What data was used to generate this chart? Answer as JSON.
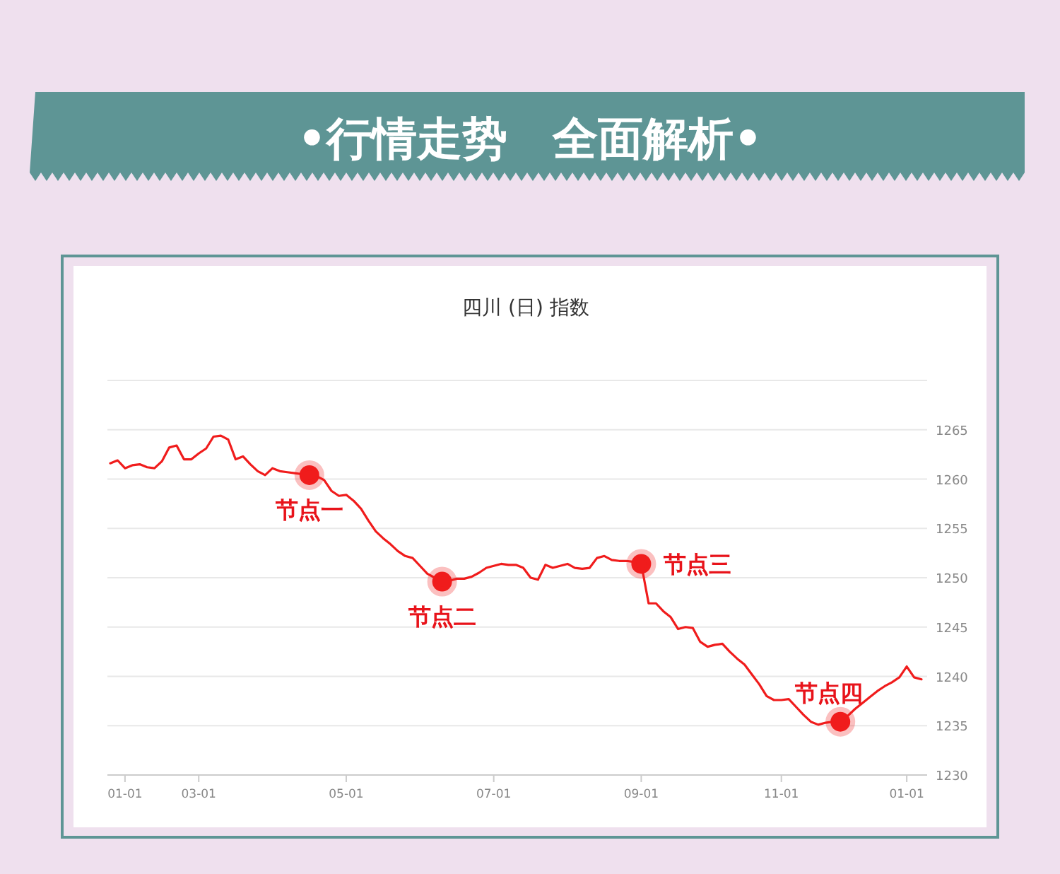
{
  "chart_data": {
    "type": "line",
    "title": "•行情走势　全面解析•",
    "subtitle": "四川 (日) 指数",
    "categories": [
      null,
      null,
      "01-01",
      null,
      null,
      null,
      null,
      null,
      null,
      null,
      null,
      null,
      "03-01",
      null,
      null,
      null,
      null,
      null,
      null,
      null,
      null,
      null,
      null,
      null,
      null,
      null,
      null,
      null,
      null,
      null,
      null,
      null,
      "05-01",
      null,
      null,
      null,
      null,
      null,
      null,
      null,
      null,
      null,
      null,
      null,
      null,
      null,
      null,
      null,
      null,
      null,
      null,
      null,
      "07-01",
      null,
      null,
      null,
      null,
      null,
      null,
      null,
      null,
      null,
      null,
      null,
      null,
      null,
      null,
      null,
      null,
      null,
      null,
      null,
      "09-01",
      null,
      null,
      null,
      null,
      null,
      null,
      null,
      null,
      null,
      null,
      null,
      null,
      null,
      null,
      null,
      null,
      null,
      null,
      "11-01",
      null,
      null,
      null,
      null,
      null,
      null,
      null,
      null,
      null,
      null,
      null,
      null,
      null,
      null,
      null,
      null,
      "01-01",
      null,
      null
    ],
    "ylim": [
      1230,
      1270
    ],
    "yticks": [
      1230,
      1235,
      1240,
      1245,
      1250,
      1255,
      1260,
      1265,
      {
        "value": 1270,
        "label": null
      }
    ],
    "grid": "y",
    "series": [
      {
        "color": "#f01c1c",
        "values": [
          1261.6,
          1261.9,
          1261.1,
          1261.4,
          1261.5,
          1261.2,
          1261.1,
          1261.8,
          1263.2,
          1263.4,
          1262.0,
          1262.0,
          1262.6,
          1263.1,
          1264.3,
          1264.4,
          1264.0,
          1262.0,
          1262.3,
          1261.5,
          1260.8,
          1260.4,
          1261.1,
          1260.8,
          1260.7,
          1260.6,
          1260.5,
          1260.4,
          1260.3,
          1259.9,
          1258.8,
          1258.3,
          1258.4,
          1257.8,
          1257.0,
          1255.8,
          1254.7,
          1254.0,
          1253.4,
          1252.7,
          1252.2,
          1252.0,
          1251.2,
          1250.4,
          1250.0,
          1249.6,
          1249.7,
          1249.9,
          1249.9,
          1250.1,
          1250.5,
          1251.0,
          1251.2,
          1251.4,
          1251.3,
          1251.3,
          1251.0,
          1250.0,
          1249.8,
          1251.3,
          1251.0,
          1251.2,
          1251.4,
          1251.0,
          1250.9,
          1251.0,
          1252.0,
          1252.2,
          1251.8,
          1251.7,
          1251.7,
          1251.6,
          1251.4,
          1247.4,
          1247.4,
          1246.6,
          1246.0,
          1244.8,
          1245.0,
          1244.9,
          1243.5,
          1243.0,
          1243.2,
          1243.3,
          1242.5,
          1241.8,
          1241.2,
          1240.2,
          1239.2,
          1238.0,
          1237.6,
          1237.6,
          1237.7,
          1236.9,
          1236.1,
          1235.4,
          1235.1,
          1235.3,
          1235.4,
          1235.4,
          1236.0,
          1236.7,
          1237.3,
          1237.9,
          1238.5,
          1239.0,
          1239.4,
          1239.9,
          1241.0,
          1239.9,
          1239.7
        ]
      },
      {
        "type": "scatter",
        "marker": "circle",
        "color": "#f01c1c",
        "values": [
          null,
          null,
          null,
          null,
          null,
          null,
          null,
          null,
          null,
          null,
          null,
          null,
          null,
          null,
          null,
          null,
          null,
          null,
          null,
          null,
          null,
          null,
          null,
          null,
          null,
          null,
          null,
          1260.4,
          null,
          null,
          null,
          null,
          null,
          null,
          null,
          null,
          null,
          null,
          null,
          null,
          null,
          null,
          null,
          null,
          null,
          1249.6,
          null,
          null,
          null,
          null,
          null,
          null,
          null,
          null,
          null,
          null,
          null,
          null,
          null,
          null,
          null,
          null,
          null,
          null,
          null,
          null,
          null,
          null,
          null,
          null,
          null,
          null,
          1251.4,
          null,
          null,
          null,
          null,
          null,
          null,
          null,
          null,
          null,
          null,
          null,
          null,
          null,
          null,
          null,
          null,
          null,
          null,
          null,
          null,
          null,
          null,
          null,
          null,
          null,
          null,
          1235.4,
          null,
          null,
          null,
          null,
          null,
          null,
          null,
          null,
          null,
          null,
          null
        ]
      }
    ],
    "annotations": [
      "节点一",
      "节点二",
      "节点三",
      "节点四"
    ]
  }
}
